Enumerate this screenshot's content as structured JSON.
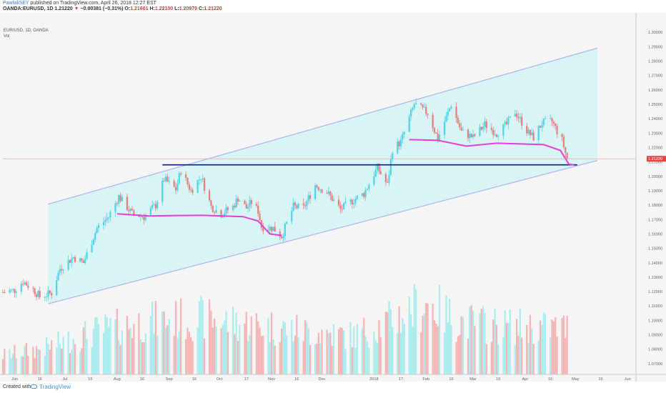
{
  "header": {
    "author": "PawfaliSEY",
    "published_text": "published on TradingView.com, April 26, 2018 12:27 EST",
    "symbol": "OANDA:EURUSD, 1D",
    "last": "1.21220",
    "change": "−0.00381 (−0.31%)",
    "o_label": "O:",
    "o_value": "1.21601",
    "h_label": "H:",
    "h_value": "1.22100",
    "l_label": "L:",
    "l_value": "1.20979",
    "c_label": "C:",
    "c_value": "1.21220"
  },
  "legend": {
    "symbol": "EUR/USD, 1D, OANDA",
    "volume": "Vol"
  },
  "footer": {
    "created_with": "Created with",
    "brand": "TradingView"
  },
  "colors": {
    "up": "#4fd3e8",
    "down": "#e57f7f",
    "vol_up": "#a8ecee",
    "vol_down": "#f4b4b4",
    "channel_fill": "#d8f4f4",
    "channel_line": "#a9b3f0",
    "support_line": "#0b1a8c",
    "ma_line": "#e43fd9",
    "price_line": "#f09898",
    "price_tag": "#e64545",
    "background": "#f5f5f5"
  },
  "chart_data": {
    "type": "candlestick",
    "title": "",
    "y_axis": {
      "min": 1.0625,
      "max": 1.3125,
      "ticks": [
        "1.30000",
        "1.29000",
        "1.28000",
        "1.27000",
        "1.26000",
        "1.25000",
        "1.24000",
        "1.23000",
        "1.22000",
        "1.21000",
        "1.20000",
        "1.19000",
        "1.18000",
        "1.17000",
        "1.16000",
        "1.15000",
        "1.14000",
        "1.13000",
        "1.12000",
        "1.11000",
        "1.10000",
        "1.09000",
        "1.08000",
        "1.07000"
      ],
      "tick_values": [
        1.3,
        1.29,
        1.28,
        1.27,
        1.26,
        1.25,
        1.24,
        1.23,
        1.22,
        1.21,
        1.2,
        1.19,
        1.18,
        1.17,
        1.16,
        1.15,
        1.14,
        1.13,
        1.12,
        1.11,
        1.1,
        1.09,
        1.08,
        1.07
      ]
    },
    "x_axis": {
      "tick_labels": [
        "Jun",
        "16",
        "Jul",
        "16",
        "Aug",
        "16",
        "Sep",
        "16",
        "Oct",
        "17",
        "Nov",
        "16",
        "Dec",
        "2018",
        "17",
        "Feb",
        "16",
        "Mar",
        "16",
        "Apr",
        "16",
        "May",
        "16",
        "Jun"
      ],
      "tick_dates": [
        "2017-06-01",
        "2017-06-16",
        "2017-07-01",
        "2017-07-16",
        "2017-08-01",
        "2017-08-16",
        "2017-09-01",
        "2017-09-16",
        "2017-10-01",
        "2017-10-17",
        "2017-11-01",
        "2017-11-16",
        "2017-12-01",
        "2018-01-01",
        "2018-01-17",
        "2018-02-01",
        "2018-02-16",
        "2018-03-01",
        "2018-03-16",
        "2018-04-01",
        "2018-04-16",
        "2018-05-01",
        "2018-05-16",
        "2018-06-01"
      ],
      "start_date": "2017-05-25",
      "end_date": "2018-06-06"
    },
    "price_anchors": [
      [
        "2017-05-25",
        1.1195
      ],
      [
        "2017-06-01",
        1.121
      ],
      [
        "2017-06-06",
        1.127
      ],
      [
        "2017-06-12",
        1.1215
      ],
      [
        "2017-06-16",
        1.1165
      ],
      [
        "2017-06-23",
        1.119
      ],
      [
        "2017-06-28",
        1.136
      ],
      [
        "2017-07-06",
        1.144
      ],
      [
        "2017-07-12",
        1.14
      ],
      [
        "2017-07-20",
        1.164
      ],
      [
        "2017-07-27",
        1.172
      ],
      [
        "2017-08-02",
        1.186
      ],
      [
        "2017-08-10",
        1.174
      ],
      [
        "2017-08-17",
        1.172
      ],
      [
        "2017-08-24",
        1.18
      ],
      [
        "2017-08-29",
        1.198
      ],
      [
        "2017-09-05",
        1.191
      ],
      [
        "2017-09-08",
        1.204
      ],
      [
        "2017-09-14",
        1.19
      ],
      [
        "2017-09-20",
        1.2
      ],
      [
        "2017-09-26",
        1.179
      ],
      [
        "2017-10-02",
        1.174
      ],
      [
        "2017-10-09",
        1.179
      ],
      [
        "2017-10-12",
        1.185
      ],
      [
        "2017-10-17",
        1.178
      ],
      [
        "2017-10-20",
        1.182
      ],
      [
        "2017-10-24",
        1.176
      ],
      [
        "2017-10-26",
        1.165
      ],
      [
        "2017-11-02",
        1.164
      ],
      [
        "2017-11-07",
        1.1585
      ],
      [
        "2017-11-14",
        1.179
      ],
      [
        "2017-11-20",
        1.178
      ],
      [
        "2017-11-27",
        1.194
      ],
      [
        "2017-12-04",
        1.189
      ],
      [
        "2017-12-12",
        1.177
      ],
      [
        "2017-12-19",
        1.183
      ],
      [
        "2017-12-26",
        1.188
      ],
      [
        "2018-01-03",
        1.206
      ],
      [
        "2018-01-09",
        1.194
      ],
      [
        "2018-01-12",
        1.219
      ],
      [
        "2018-01-17",
        1.224
      ],
      [
        "2018-01-25",
        1.25
      ],
      [
        "2018-02-02",
        1.244
      ],
      [
        "2018-02-08",
        1.226
      ],
      [
        "2018-02-16",
        1.25
      ],
      [
        "2018-02-22",
        1.231
      ],
      [
        "2018-03-01",
        1.227
      ],
      [
        "2018-03-08",
        1.236
      ],
      [
        "2018-03-15",
        1.23
      ],
      [
        "2018-03-21",
        1.236
      ],
      [
        "2018-03-26",
        1.245
      ],
      [
        "2018-04-03",
        1.23
      ],
      [
        "2018-04-06",
        1.227
      ],
      [
        "2018-04-11",
        1.237
      ],
      [
        "2018-04-17",
        1.238
      ],
      [
        "2018-04-23",
        1.225
      ],
      [
        "2018-04-26",
        1.2122
      ]
    ],
    "volume_levels": {
      "description_free": "",
      "segments": [
        [
          "2017-05-25",
          0.2
        ],
        [
          "2017-06-20",
          0.28
        ],
        [
          "2017-07-20",
          0.45
        ],
        [
          "2017-08-20",
          0.55
        ],
        [
          "2017-09-20",
          0.58
        ],
        [
          "2017-10-20",
          0.52
        ],
        [
          "2017-11-20",
          0.45
        ],
        [
          "2017-12-20",
          0.4
        ],
        [
          "2018-01-10",
          0.55
        ],
        [
          "2018-02-01",
          0.75
        ],
        [
          "2018-02-20",
          0.55
        ],
        [
          "2018-03-20",
          0.5
        ],
        [
          "2018-04-26",
          0.48
        ]
      ]
    },
    "channel": {
      "upper": [
        [
          "2017-07-10",
          1.187
        ],
        [
          "2018-05-14",
          1.289
        ]
      ],
      "lower": [
        [
          "2017-06-21",
          1.1115
        ],
        [
          "2018-05-14",
          1.211
        ]
      ]
    },
    "support_line": {
      "value": 1.208,
      "from": "2017-08-28",
      "to": "2018-05-02"
    },
    "ma_segments": [
      [
        [
          "2017-08-01",
          1.174
        ],
        [
          "2017-08-20",
          1.1725
        ],
        [
          "2017-09-20",
          1.173
        ],
        [
          "2017-10-15",
          1.172
        ],
        [
          "2017-10-24",
          1.169
        ],
        [
          "2017-10-31",
          1.16
        ],
        [
          "2017-11-07",
          1.159
        ]
      ],
      [
        [
          "2018-01-22",
          1.2255
        ],
        [
          "2018-02-08",
          1.225
        ],
        [
          "2018-02-25",
          1.221
        ],
        [
          "2018-03-15",
          1.223
        ],
        [
          "2018-04-12",
          1.222
        ],
        [
          "2018-04-22",
          1.218
        ],
        [
          "2018-04-27",
          1.2085
        ],
        [
          "2018-04-30",
          1.208
        ]
      ]
    ],
    "last_price": 1.2122,
    "last_price_label": "1.21220"
  }
}
